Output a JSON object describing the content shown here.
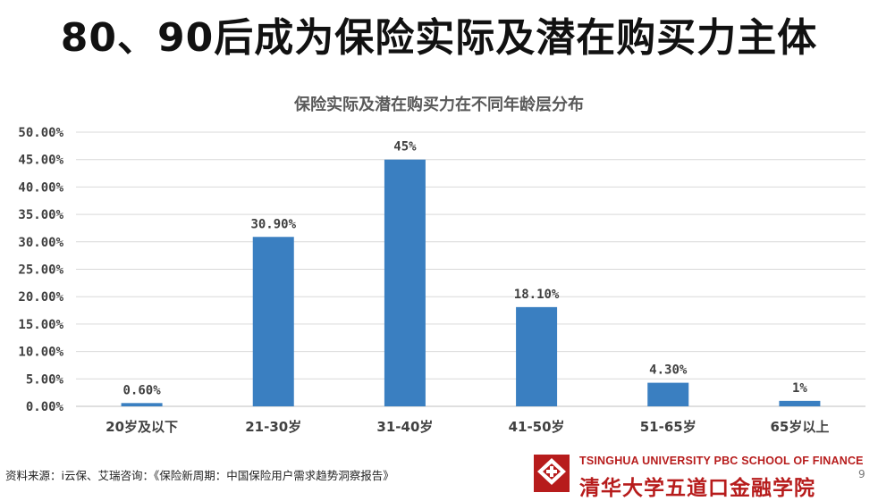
{
  "slide": {
    "title": "80、90后成为保险实际及潜在购买力主体",
    "source": "资料来源：i云保、艾瑞咨询：《保险新周期：中国保险用户需求趋势洞察报告》",
    "page_number": "9"
  },
  "logo": {
    "english": "TSINGHUA UNIVERSITY PBC SCHOOL OF FINANCE",
    "chinese": "清华大学五道口金融学院",
    "color": "#b71c1c"
  },
  "chart_data": {
    "type": "bar",
    "title": "保险实际及潜在购买力在不同年龄层分布",
    "categories": [
      "20岁及以下",
      "21-30岁",
      "31-40岁",
      "41-50岁",
      "51-65岁",
      "65岁以上"
    ],
    "values": [
      0.6,
      30.9,
      45,
      18.1,
      4.3,
      1
    ],
    "data_labels": [
      "0.60%",
      "30.90%",
      "45%",
      "18.10%",
      "4.30%",
      "1%"
    ],
    "y_ticks": [
      "0.00%",
      "5.00%",
      "10.00%",
      "15.00%",
      "20.00%",
      "25.00%",
      "30.00%",
      "35.00%",
      "40.00%",
      "45.00%",
      "50.00%"
    ],
    "ylim": [
      0,
      50
    ],
    "grid": true,
    "bar_color": "#3a7fc1",
    "grid_color": "#d9d9d9"
  }
}
